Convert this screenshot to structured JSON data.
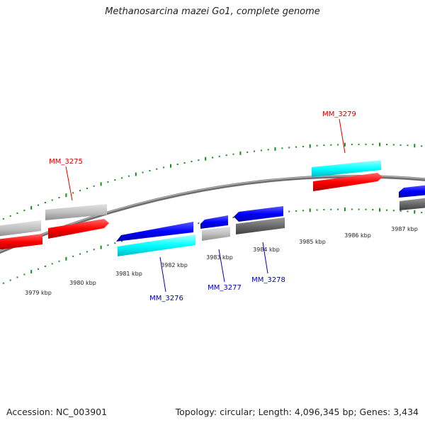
{
  "title": "Methanosarcina mazei Go1, complete genome",
  "footer": {
    "accession": "Accession: NC_003901",
    "summary": "Topology: circular; Length: 4,096,345 bp; Genes: 3,434"
  },
  "colors": {
    "forward_gene": "#ff0000",
    "forward_cds": "#c0c0c0",
    "reverse_gene": "#0000ff",
    "reverse_cds_alt": "#00ffff",
    "reverse_cds_dark": "#606060",
    "tick": "#1a8a1a",
    "backbone": "#808080",
    "forward_label": "#cc0000",
    "reverse_label": "#0000aa"
  },
  "tick_labels": [
    "3979 kbp",
    "3980 kbp",
    "3981 kbp",
    "3982 kbp",
    "3983 kbp",
    "3984 kbp",
    "3985 kbp",
    "3986 kbp",
    "3987 kbp"
  ],
  "genes": [
    {
      "label": "MM_3275",
      "strand": "forward"
    },
    {
      "label": "MM_3276",
      "strand": "reverse"
    },
    {
      "label": "MM_3277",
      "strand": "reverse"
    },
    {
      "label": "MM_3278",
      "strand": "reverse"
    },
    {
      "label": "MM_3279",
      "strand": "forward"
    }
  ]
}
